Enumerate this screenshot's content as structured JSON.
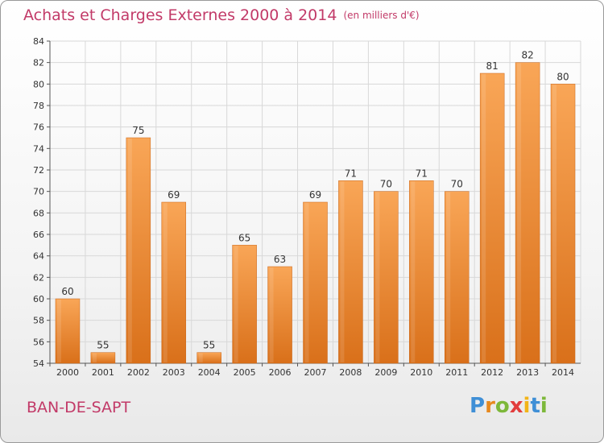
{
  "header": {
    "title": "Achats et Charges Externes 2000 à 2014",
    "unit": "(en milliers d'€)"
  },
  "footer": {
    "commune": "BAN-DE-SAPT",
    "logo_letters": [
      "P",
      "r",
      "o",
      "x",
      "i",
      "t",
      "i"
    ]
  },
  "colors": {
    "title": "#c23a68",
    "bar_top": "#f9a657",
    "bar_bottom": "#d9701a",
    "grid": "#d8d8d8"
  },
  "chart_data": {
    "type": "bar",
    "title": "Achats et Charges Externes 2000 à 2014",
    "subtitle": "(en milliers d'€)",
    "categories": [
      "2000",
      "2001",
      "2002",
      "2003",
      "2004",
      "2005",
      "2006",
      "2007",
      "2008",
      "2009",
      "2010",
      "2011",
      "2012",
      "2013",
      "2014"
    ],
    "values": [
      60,
      55,
      75,
      69,
      55,
      65,
      63,
      69,
      71,
      70,
      71,
      70,
      81,
      82,
      80
    ],
    "ylim": [
      54,
      84
    ],
    "yticks": [
      54,
      56,
      58,
      60,
      62,
      64,
      66,
      68,
      70,
      72,
      74,
      76,
      78,
      80,
      82,
      84
    ],
    "grid": true,
    "data_labels": true
  }
}
